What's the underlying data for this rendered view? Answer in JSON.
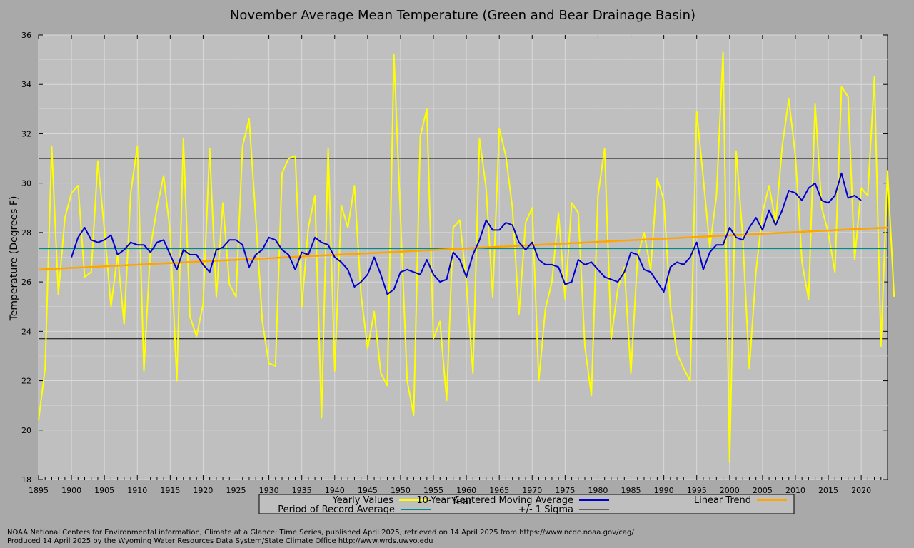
{
  "chart_data": {
    "type": "line",
    "title": "November Average Mean Temperature (Green and Bear Drainage Basin)",
    "xlabel": "Year",
    "ylabel": "Temperature (Degrees F)",
    "xlim": [
      1895,
      2024
    ],
    "ylim": [
      18,
      36
    ],
    "x_ticks": [
      1895,
      1900,
      1905,
      1910,
      1915,
      1920,
      1925,
      1930,
      1935,
      1940,
      1945,
      1950,
      1955,
      1960,
      1965,
      1970,
      1975,
      1980,
      1985,
      1990,
      1995,
      2000,
      2005,
      2010,
      2015,
      2020
    ],
    "y_ticks": [
      18,
      20,
      22,
      24,
      26,
      28,
      30,
      32,
      34,
      36
    ],
    "grid": true,
    "legend_position": "bottom-center",
    "colors": {
      "page_background": "#a9a9a9",
      "plot_background": "#bfbfbf",
      "grid": "#d9d9d9",
      "yearly": "#ffff00",
      "moving_average": "#0000cc",
      "trend": "#ffa500",
      "period_average": "#008b8b",
      "sigma": "#000000"
    },
    "legend": {
      "yearly": "Yearly Values",
      "moving_average": "10-Year Centered Moving Average",
      "trend": "Linear Trend",
      "period_average": "Period of Record Average",
      "sigma": "+/- 1 Sigma"
    },
    "series": [
      {
        "name": "Yearly Values",
        "x_start": 1895,
        "values": [
          20.4,
          22.5,
          31.5,
          25.5,
          28.6,
          29.6,
          29.9,
          26.2,
          26.4,
          30.9,
          28.1,
          25.0,
          27.1,
          24.3,
          29.6,
          31.5,
          22.4,
          27.4,
          29.0,
          30.3,
          28.0,
          22.0,
          31.8,
          24.6,
          23.8,
          25.1,
          31.4,
          25.4,
          29.2,
          25.9,
          25.4,
          31.5,
          32.6,
          28.6,
          24.4,
          22.7,
          22.6,
          30.4,
          31.0,
          31.1,
          25.0,
          28.2,
          29.5,
          20.5,
          31.4,
          22.4,
          29.1,
          28.2,
          29.9,
          25.5,
          23.3,
          24.8,
          22.3,
          21.8,
          35.2,
          28.6,
          22.0,
          20.6,
          31.9,
          33.0,
          23.7,
          24.4,
          21.2,
          28.2,
          28.5,
          26.0,
          22.3,
          31.8,
          29.8,
          25.4,
          32.2,
          31.1,
          29.0,
          24.7,
          28.4,
          29.0,
          22.0,
          24.9,
          26.0,
          28.8,
          25.3,
          29.2,
          28.8,
          23.4,
          21.4,
          29.5,
          31.4,
          23.7,
          25.7,
          26.6,
          22.3,
          27.0,
          28.0,
          26.5,
          30.2,
          29.3,
          25.0,
          23.1,
          22.5,
          22.0,
          32.9,
          30.2,
          27.4,
          29.5,
          35.3,
          18.7,
          31.3,
          27.8,
          22.5,
          26.4,
          28.8,
          29.9,
          28.4,
          31.5,
          33.4,
          31.1,
          26.8,
          25.3,
          33.2,
          29.0,
          28.0,
          26.4,
          33.9,
          33.5,
          26.9,
          29.8,
          29.5,
          34.3,
          23.4,
          30.5,
          25.4
        ]
      },
      {
        "name": "10-Year Centered Moving Average",
        "x_start": 1900,
        "values": [
          27.0,
          27.8,
          28.2,
          27.7,
          27.6,
          27.7,
          27.9,
          27.1,
          27.3,
          27.6,
          27.5,
          27.5,
          27.2,
          27.6,
          27.7,
          27.1,
          26.5,
          27.3,
          27.1,
          27.1,
          26.7,
          26.4,
          27.3,
          27.4,
          27.7,
          27.7,
          27.5,
          26.6,
          27.1,
          27.3,
          27.8,
          27.7,
          27.3,
          27.1,
          26.5,
          27.2,
          27.1,
          27.8,
          27.6,
          27.5,
          27.0,
          26.8,
          26.5,
          25.8,
          26.0,
          26.3,
          27.0,
          26.3,
          25.5,
          25.7,
          26.4,
          26.5,
          26.4,
          26.3,
          26.9,
          26.3,
          26.0,
          26.1,
          27.2,
          26.9,
          26.2,
          27.1,
          27.7,
          28.5,
          28.1,
          28.1,
          28.4,
          28.3,
          27.6,
          27.3,
          27.6,
          26.9,
          26.7,
          26.7,
          26.6,
          25.9,
          26.0,
          26.9,
          26.7,
          26.8,
          26.5,
          26.2,
          26.1,
          26.0,
          26.4,
          27.2,
          27.1,
          26.5,
          26.4,
          26.0,
          25.6,
          26.6,
          26.8,
          26.7,
          27.0,
          27.6,
          26.5,
          27.2,
          27.5,
          27.5,
          28.2,
          27.8,
          27.7,
          28.2,
          28.6,
          28.1,
          28.9,
          28.3,
          28.9,
          29.7,
          29.6,
          29.3,
          29.8,
          30.0,
          29.3,
          29.2,
          29.5,
          30.4,
          29.4,
          29.5,
          29.3
        ]
      },
      {
        "name": "Linear Trend",
        "x": [
          1895,
          2024
        ],
        "values": [
          26.5,
          28.2
        ]
      },
      {
        "name": "Period of Record Average",
        "value": 27.35
      },
      {
        "name": "+/- 1 Sigma",
        "values": [
          23.7,
          31.0
        ]
      }
    ]
  },
  "footer": {
    "line1": "NOAA National Centers for Environmental information, Climate at a Glance: Time Series, published April 2025, retrieved on 14 April 2025 from https://www.ncdc.noaa.gov/cag/",
    "line2": "Produced 14 April 2025 by the Wyoming Water Resources Data System/State Climate Office http://www.wrds.uwyo.edu"
  }
}
